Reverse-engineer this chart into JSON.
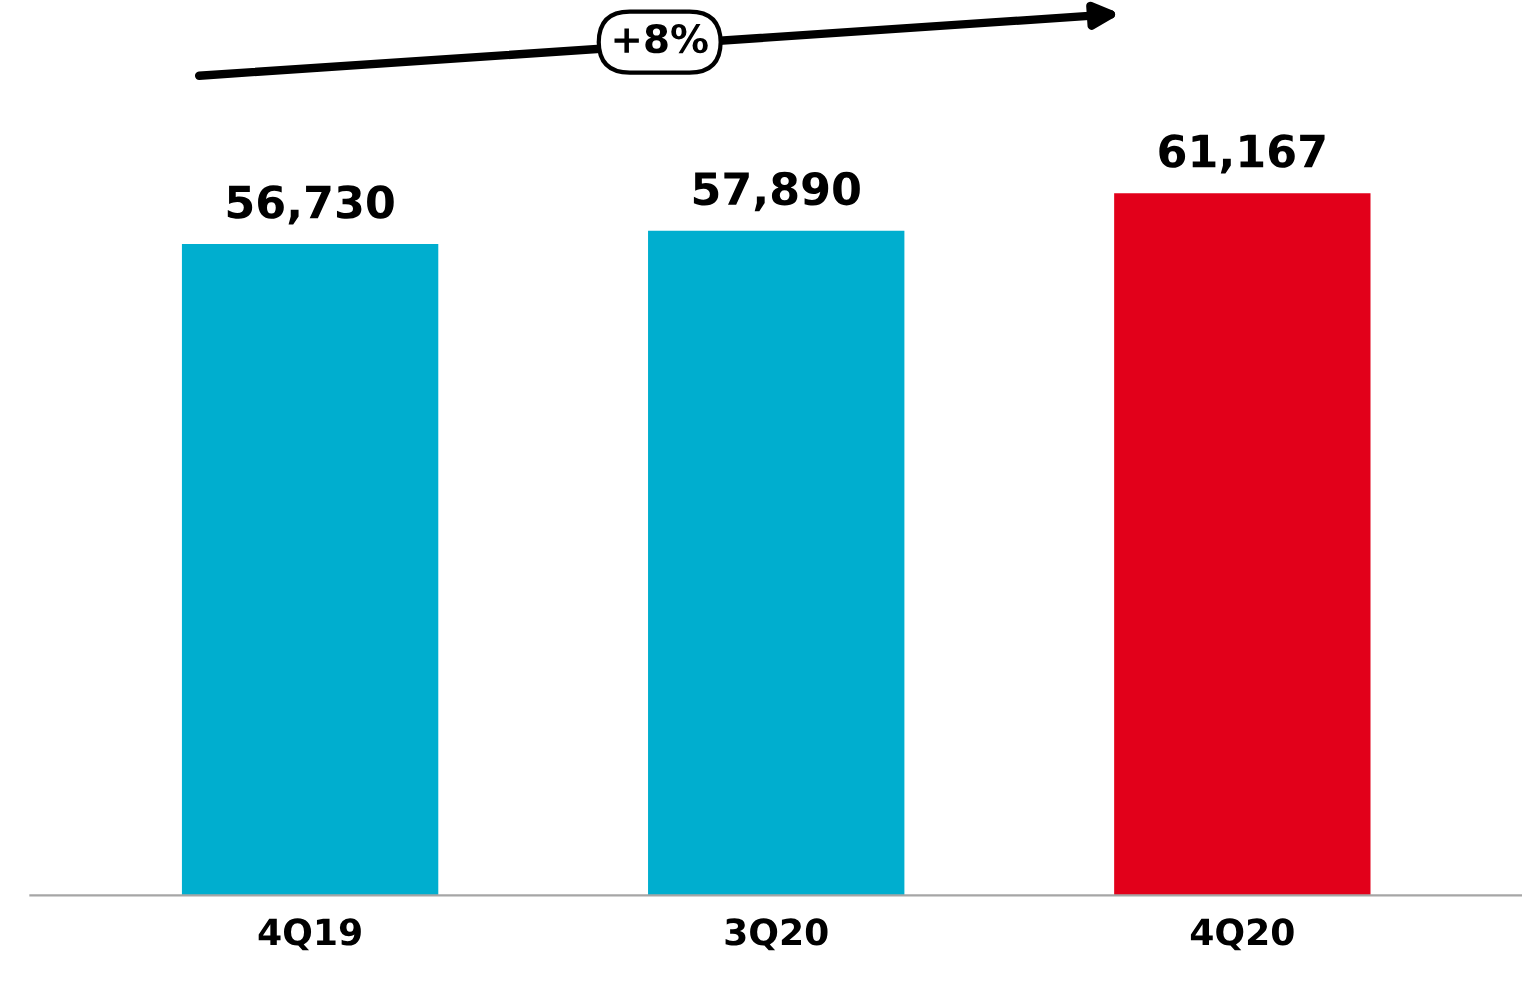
{
  "chart_data": {
    "type": "bar",
    "categories": [
      "4Q19",
      "3Q20",
      "4Q20"
    ],
    "values": [
      56730,
      57890,
      61167
    ],
    "colors": [
      "#00aecf",
      "#00aecf",
      "#e2001a"
    ],
    "tick_labels": "x",
    "data_labels": true,
    "grid": false,
    "legend": false,
    "value_labels": [
      "56,730",
      "57,890",
      "61,167"
    ],
    "annotations": [
      "+8%"
    ]
  }
}
